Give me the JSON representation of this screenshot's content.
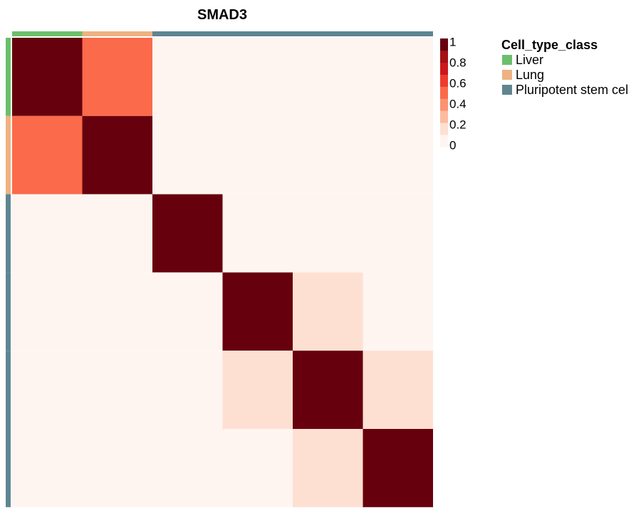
{
  "chart_data": {
    "type": "heatmap",
    "title": "SMAD3",
    "rows": 6,
    "cols": 6,
    "values": [
      [
        1.0,
        0.55,
        0.05,
        0.05,
        0.05,
        0.05
      ],
      [
        0.55,
        1.0,
        0.05,
        0.05,
        0.05,
        0.05
      ],
      [
        0.05,
        0.05,
        1.0,
        0.05,
        0.05,
        0.05
      ],
      [
        0.05,
        0.05,
        0.05,
        1.0,
        0.15,
        0.05
      ],
      [
        0.05,
        0.05,
        0.05,
        0.15,
        1.0,
        0.15
      ],
      [
        0.05,
        0.05,
        0.05,
        0.05,
        0.15,
        1.0
      ]
    ],
    "annotation": {
      "title": "Cell_type_class",
      "classes": [
        "Liver",
        "Lung",
        "Pluripotent stem cel"
      ],
      "colors": [
        "#6BBF6B",
        "#EEB282",
        "#5F8591"
      ],
      "assignment": [
        0,
        1,
        2,
        2,
        2,
        2
      ]
    },
    "colorbar": {
      "ticks": [
        "1",
        "0.8",
        "0.6",
        "0.4",
        "0.2",
        "0"
      ],
      "colors": [
        "#FFF5F0",
        "#FEE0D2",
        "#FCBBA1",
        "#FC9272",
        "#FB6A4A",
        "#EF3B2C",
        "#CB181D",
        "#A50F15",
        "#67000D"
      ],
      "range": [
        0,
        1
      ]
    }
  }
}
